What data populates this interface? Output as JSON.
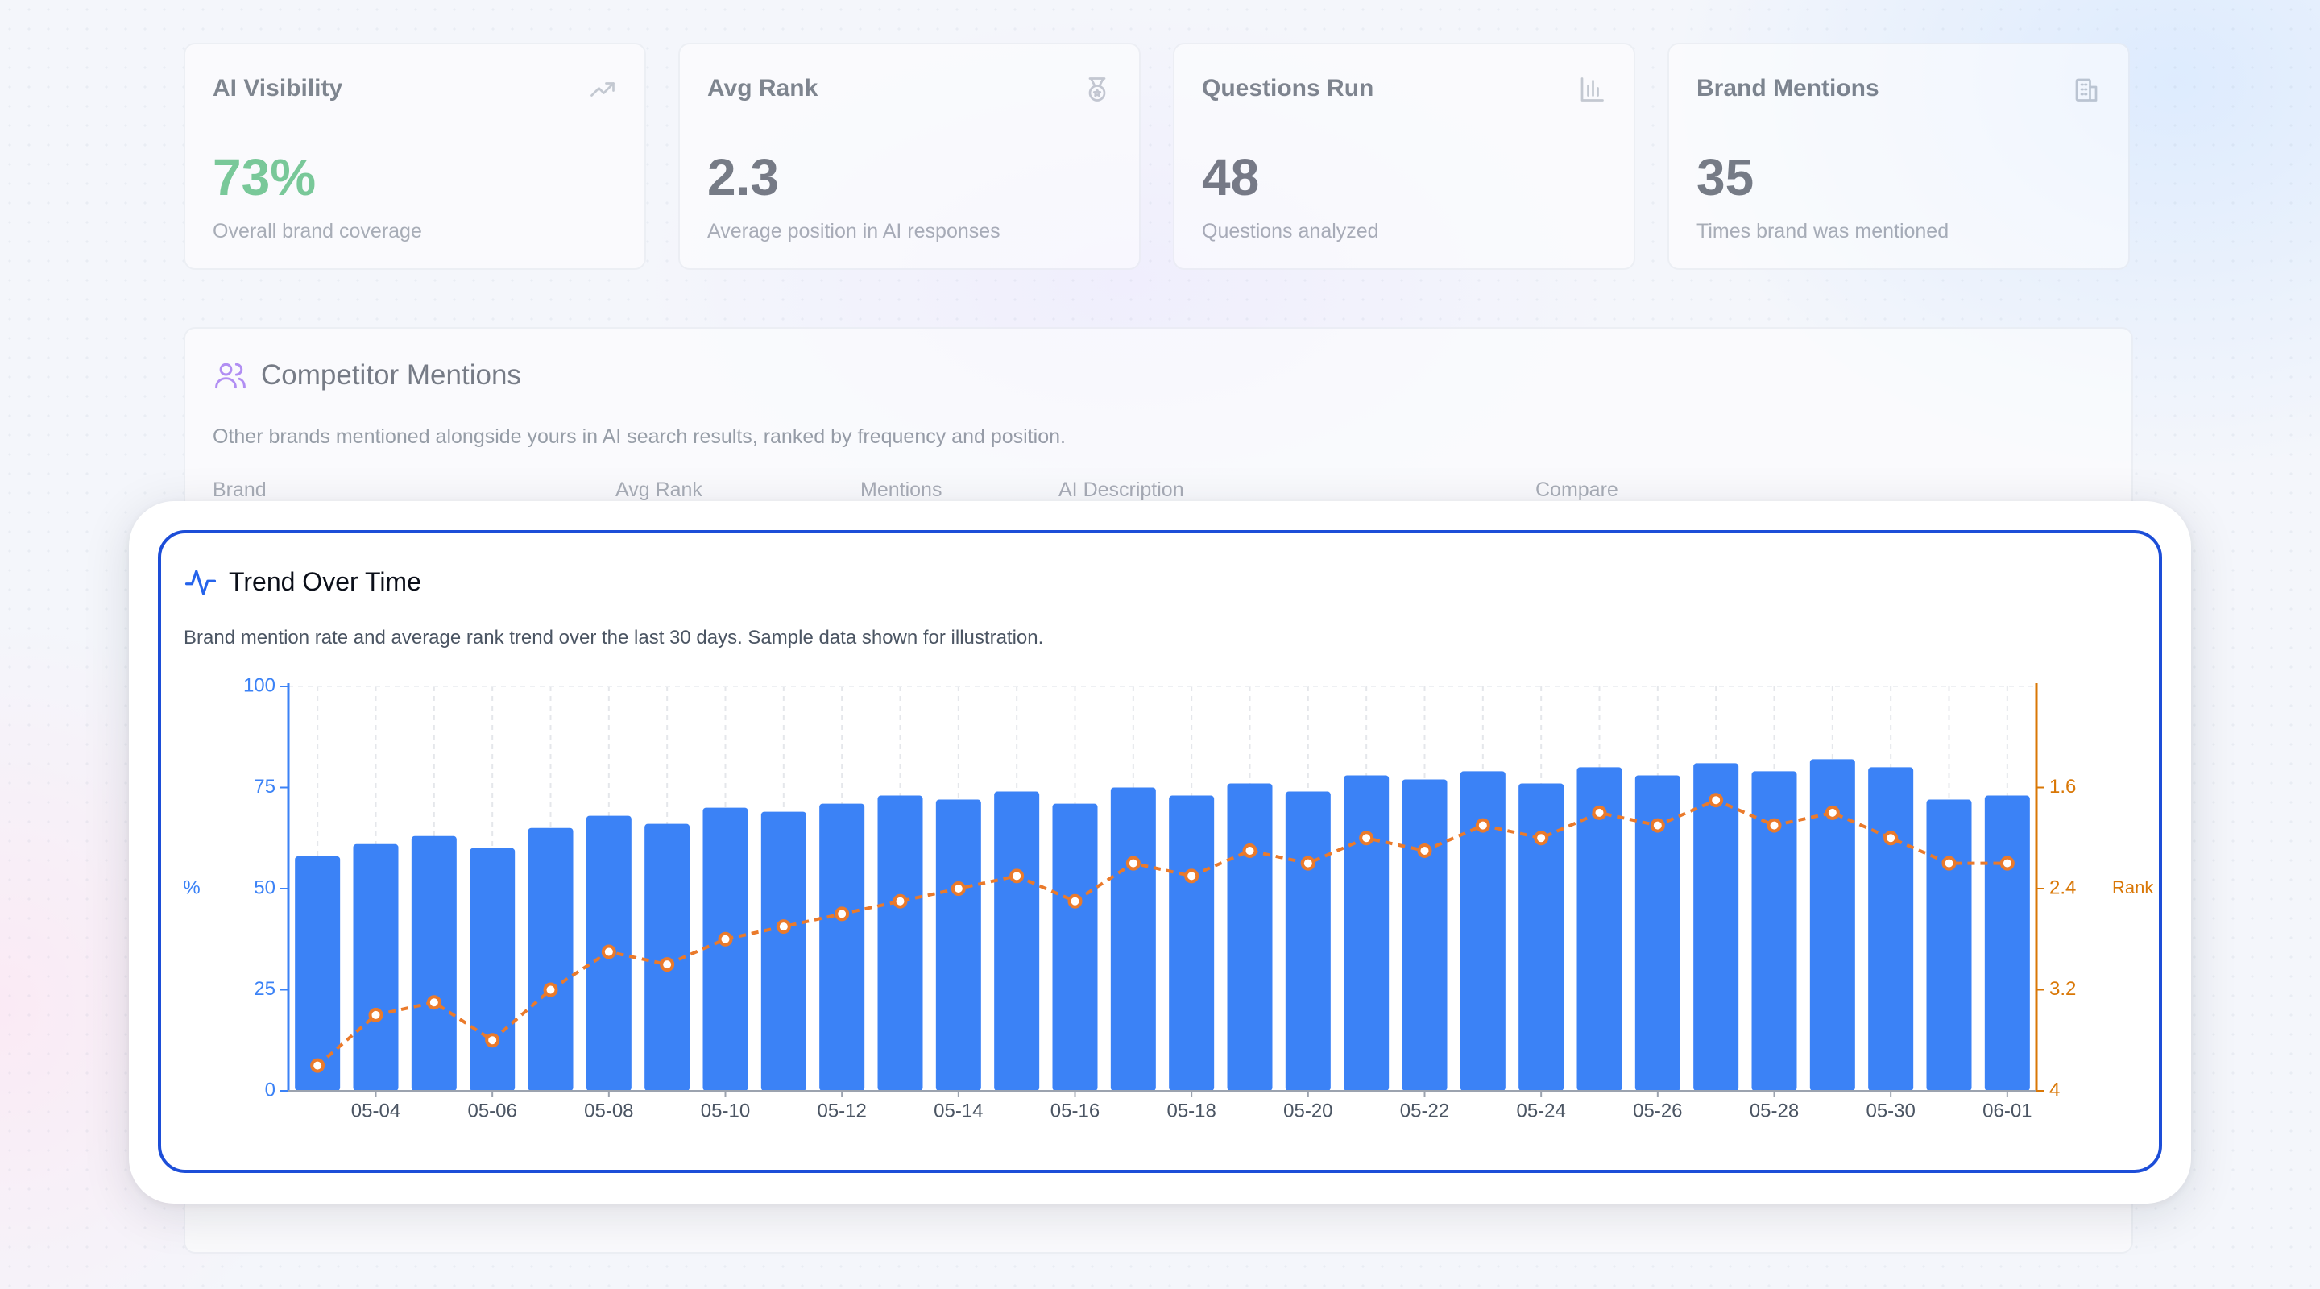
{
  "stats": [
    {
      "label": "AI Visibility",
      "value": "73%",
      "sub": "Overall brand coverage",
      "icon": "trending-up-icon",
      "value_color": "#16a34a"
    },
    {
      "label": "Avg Rank",
      "value": "2.3",
      "sub": "Average position in AI responses",
      "icon": "medal-icon"
    },
    {
      "label": "Questions Run",
      "value": "48",
      "sub": "Questions analyzed",
      "icon": "bar-chart-icon"
    },
    {
      "label": "Brand Mentions",
      "value": "35",
      "sub": "Times brand was mentioned",
      "icon": "building-icon"
    }
  ],
  "competitor": {
    "title": "Competitor Mentions",
    "icon": "users-icon",
    "description": "Other brands mentioned alongside yours in AI search results, ranked by frequency and position.",
    "columns": [
      "Brand",
      "Avg Rank",
      "Mentions",
      "AI Description",
      "Compare"
    ]
  },
  "trend": {
    "title": "Trend Over Time",
    "icon": "activity-icon",
    "description": "Brand mention rate and average rank trend over the last 30 days. Sample data shown for illustration."
  },
  "colors": {
    "bar": "#3b82f6",
    "line": "#ea7a2b",
    "axis_left": "#3b82f6",
    "axis_right": "#d97706",
    "frame": "#1d4ed8"
  },
  "chart_data": {
    "type": "bar",
    "x": [
      "05-03",
      "05-04",
      "05-05",
      "05-06",
      "05-07",
      "05-08",
      "05-09",
      "05-10",
      "05-11",
      "05-12",
      "05-13",
      "05-14",
      "05-15",
      "05-16",
      "05-17",
      "05-18",
      "05-19",
      "05-20",
      "05-21",
      "05-22",
      "05-23",
      "05-24",
      "05-25",
      "05-26",
      "05-27",
      "05-28",
      "05-29",
      "05-30",
      "05-31",
      "06-01"
    ],
    "x_tick_labels": [
      "05-04",
      "05-06",
      "05-08",
      "05-10",
      "05-12",
      "05-14",
      "05-16",
      "05-18",
      "05-20",
      "05-22",
      "05-24",
      "05-26",
      "05-28",
      "05-30",
      "06-01"
    ],
    "series": [
      {
        "type": "bar",
        "axis": "left",
        "values": [
          58,
          61,
          63,
          60,
          65,
          68,
          66,
          70,
          69,
          71,
          73,
          72,
          74,
          71,
          75,
          73,
          76,
          74,
          78,
          77,
          79,
          76,
          80,
          78,
          81,
          79,
          82,
          80,
          72,
          73
        ]
      },
      {
        "type": "line",
        "axis": "right",
        "values": [
          3.8,
          3.4,
          3.3,
          3.6,
          3.2,
          2.9,
          3.0,
          2.8,
          2.7,
          2.6,
          2.5,
          2.4,
          2.3,
          2.5,
          2.2,
          2.3,
          2.1,
          2.2,
          2.0,
          2.1,
          1.9,
          2.0,
          1.8,
          1.9,
          1.7,
          1.9,
          1.8,
          2.0,
          2.2,
          2.2
        ]
      }
    ],
    "y_left": {
      "label": "%",
      "min": 0,
      "max": 100,
      "ticks": [
        0,
        25,
        50,
        75,
        100
      ]
    },
    "y_right": {
      "label": "Rank",
      "min": 0.8,
      "max": 4,
      "inverted": true,
      "ticks": [
        1.6,
        2.4,
        3.2,
        4
      ]
    },
    "grid": "vertical-dashed"
  }
}
